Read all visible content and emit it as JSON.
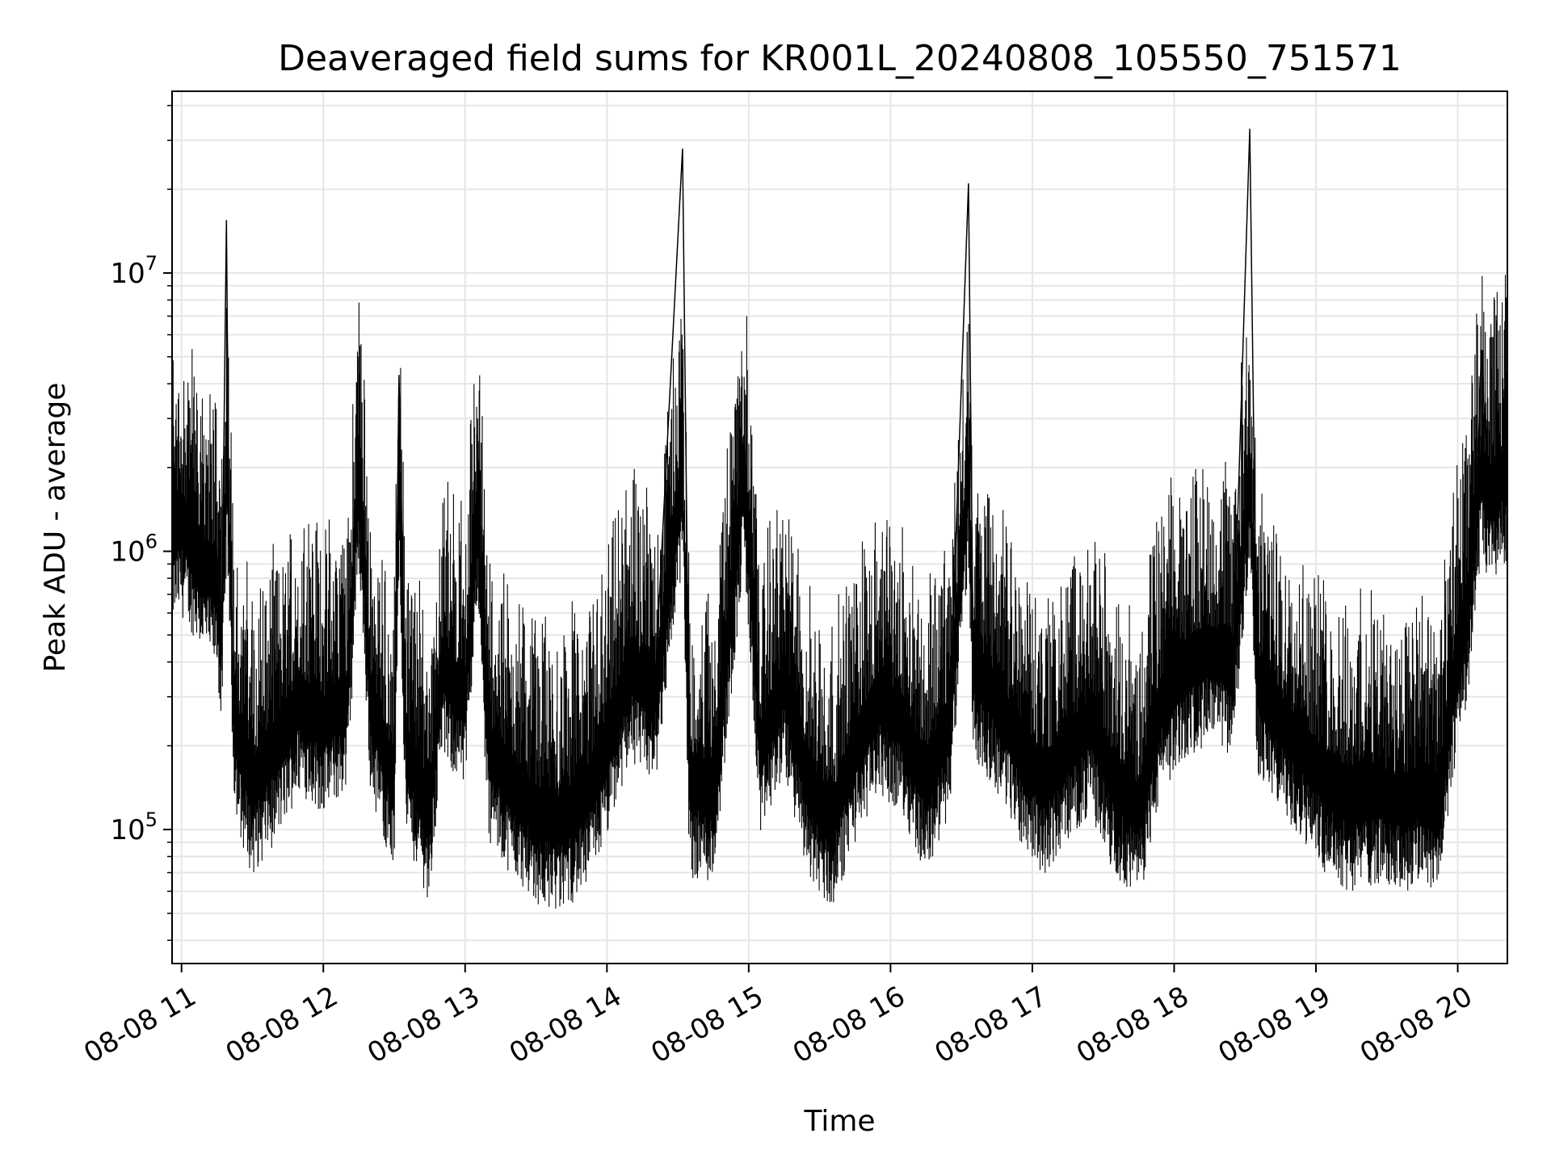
{
  "chart_data": {
    "type": "line",
    "title": "Deaveraged field sums for KR001L_20240808_105550_751571",
    "xlabel": "Time",
    "ylabel": "Peak ADU - average",
    "yscale": "log",
    "grid": true,
    "line_color": "#000000",
    "grid_color": "#e6e6e6",
    "xlim": [
      "2024-08-08 10:56",
      "2024-08-08 20:21"
    ],
    "ylim": [
      33000,
      45000000
    ],
    "x_ticks": [
      {
        "t": "2024-08-08 11:00",
        "label": "08-08 11"
      },
      {
        "t": "2024-08-08 12:00",
        "label": "08-08 12"
      },
      {
        "t": "2024-08-08 13:00",
        "label": "08-08 13"
      },
      {
        "t": "2024-08-08 14:00",
        "label": "08-08 14"
      },
      {
        "t": "2024-08-08 15:00",
        "label": "08-08 15"
      },
      {
        "t": "2024-08-08 16:00",
        "label": "08-08 16"
      },
      {
        "t": "2024-08-08 17:00",
        "label": "08-08 17"
      },
      {
        "t": "2024-08-08 18:00",
        "label": "08-08 18"
      },
      {
        "t": "2024-08-08 19:00",
        "label": "08-08 19"
      },
      {
        "t": "2024-08-08 20:00",
        "label": "08-08 20"
      }
    ],
    "y_ticks": [
      {
        "v": 100000,
        "base": "10",
        "exp": "5"
      },
      {
        "v": 1000000,
        "base": "10",
        "exp": "6"
      },
      {
        "v": 10000000,
        "base": "10",
        "exp": "7"
      }
    ],
    "series": [
      {
        "points": [
          [
            "2024-08-08 10:56",
            1200000
          ],
          [
            "2024-08-08 11:00",
            1300000
          ],
          [
            "2024-08-08 11:05",
            1100000
          ],
          [
            "2024-08-08 11:10",
            900000
          ],
          [
            "2024-08-08 11:15",
            800000
          ],
          [
            "2024-08-08 11:17",
            500000
          ],
          [
            "2024-08-08 11:19",
            15500000
          ],
          [
            "2024-08-08 11:20",
            1500000
          ],
          [
            "2024-08-08 11:22",
            300000
          ],
          [
            "2024-08-08 11:25",
            200000
          ],
          [
            "2024-08-08 11:30",
            150000
          ],
          [
            "2024-08-08 11:40",
            200000
          ],
          [
            "2024-08-08 11:50",
            300000
          ],
          [
            "2024-08-08 12:00",
            250000
          ],
          [
            "2024-08-08 12:10",
            300000
          ],
          [
            "2024-08-08 12:15",
            2200000
          ],
          [
            "2024-08-08 12:20",
            300000
          ],
          [
            "2024-08-08 12:30",
            150000
          ],
          [
            "2024-08-08 12:32",
            4300000
          ],
          [
            "2024-08-08 12:35",
            200000
          ],
          [
            "2024-08-08 12:45",
            120000
          ],
          [
            "2024-08-08 12:50",
            400000
          ],
          [
            "2024-08-08 13:00",
            300000
          ],
          [
            "2024-08-08 13:05",
            1500000
          ],
          [
            "2024-08-08 13:10",
            200000
          ],
          [
            "2024-08-08 13:20",
            150000
          ],
          [
            "2024-08-08 13:30",
            120000
          ],
          [
            "2024-08-08 13:40",
            110000
          ],
          [
            "2024-08-08 13:50",
            130000
          ],
          [
            "2024-08-08 14:00",
            200000
          ],
          [
            "2024-08-08 14:10",
            400000
          ],
          [
            "2024-08-08 14:20",
            300000
          ],
          [
            "2024-08-08 14:32",
            28000000
          ],
          [
            "2024-08-08 14:35",
            150000
          ],
          [
            "2024-08-08 14:45",
            140000
          ],
          [
            "2024-08-08 14:58",
            2600000
          ],
          [
            "2024-08-08 15:05",
            200000
          ],
          [
            "2024-08-08 15:15",
            350000
          ],
          [
            "2024-08-08 15:25",
            150000
          ],
          [
            "2024-08-08 15:35",
            110000
          ],
          [
            "2024-08-08 15:45",
            200000
          ],
          [
            "2024-08-08 15:55",
            300000
          ],
          [
            "2024-08-08 16:05",
            250000
          ],
          [
            "2024-08-08 16:15",
            150000
          ],
          [
            "2024-08-08 16:25",
            250000
          ],
          [
            "2024-08-08 16:33",
            21000000
          ],
          [
            "2024-08-08 16:35",
            400000
          ],
          [
            "2024-08-08 16:45",
            300000
          ],
          [
            "2024-08-08 16:55",
            200000
          ],
          [
            "2024-08-08 17:05",
            150000
          ],
          [
            "2024-08-08 17:15",
            200000
          ],
          [
            "2024-08-08 17:25",
            250000
          ],
          [
            "2024-08-08 17:35",
            150000
          ],
          [
            "2024-08-08 17:45",
            120000
          ],
          [
            "2024-08-08 17:55",
            300000
          ],
          [
            "2024-08-08 18:05",
            400000
          ],
          [
            "2024-08-08 18:15",
            450000
          ],
          [
            "2024-08-08 18:25",
            400000
          ],
          [
            "2024-08-08 18:32",
            33000000
          ],
          [
            "2024-08-08 18:35",
            350000
          ],
          [
            "2024-08-08 18:45",
            250000
          ],
          [
            "2024-08-08 18:55",
            200000
          ],
          [
            "2024-08-08 19:05",
            150000
          ],
          [
            "2024-08-08 19:15",
            130000
          ],
          [
            "2024-08-08 19:25",
            140000
          ],
          [
            "2024-08-08 19:35",
            130000
          ],
          [
            "2024-08-08 19:45",
            140000
          ],
          [
            "2024-08-08 19:52",
            130000
          ],
          [
            "2024-08-08 19:55",
            200000
          ],
          [
            "2024-08-08 20:00",
            450000
          ],
          [
            "2024-08-08 20:05",
            700000
          ],
          [
            "2024-08-08 20:08",
            1500000
          ],
          [
            "2024-08-08 20:10",
            5300000
          ],
          [
            "2024-08-08 20:13",
            1600000
          ],
          [
            "2024-08-08 20:17",
            1800000
          ],
          [
            "2024-08-08 20:21",
            2700000
          ]
        ]
      }
    ]
  }
}
